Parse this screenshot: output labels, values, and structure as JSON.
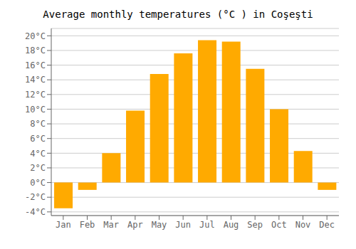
{
  "chart_data": {
    "type": "bar",
    "title": "Average monthly temperatures (°C ) in Coşeşti",
    "categories": [
      "Jan",
      "Feb",
      "Mar",
      "Apr",
      "May",
      "Jun",
      "Jul",
      "Aug",
      "Sep",
      "Oct",
      "Nov",
      "Dec"
    ],
    "values": [
      -3.5,
      -1.0,
      4.0,
      9.8,
      14.8,
      17.6,
      19.4,
      19.2,
      15.5,
      10.0,
      4.3,
      -1.0
    ],
    "color": "#FFAA00",
    "ylim": [
      -4.5,
      21.0
    ],
    "yticks": [
      {
        "value": -4,
        "label": "-4°C"
      },
      {
        "value": -2,
        "label": "-2°C"
      },
      {
        "value": 0,
        "label": "0°C"
      },
      {
        "value": 2,
        "label": "2°C"
      },
      {
        "value": 4,
        "label": "4°C"
      },
      {
        "value": 6,
        "label": "6°C"
      },
      {
        "value": 8,
        "label": "8°C"
      },
      {
        "value": 10,
        "label": "10°C"
      },
      {
        "value": 12,
        "label": "12°C"
      },
      {
        "value": 14,
        "label": "14°C"
      },
      {
        "value": 16,
        "label": "16°C"
      },
      {
        "value": 18,
        "label": "18°C"
      },
      {
        "value": 20,
        "label": "20°C"
      }
    ],
    "grid": true
  }
}
